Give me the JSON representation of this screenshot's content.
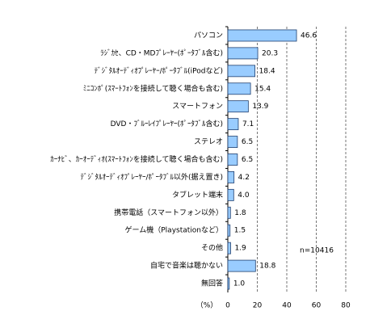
{
  "chart_data": {
    "type": "hbar",
    "categories": [
      "パソコン",
      "ﾗｼﾞｶｾ、CD・MDﾌﾟﾚｰﾔｰ(ﾎﾟｰﾀﾌﾞﾙ含む)",
      "ﾃﾞｼﾞﾀﾙｵｰﾃﾞｨｵﾌﾟﾚｰﾔｰ/ﾎﾟｰﾀﾌﾞﾙ(iPodなど)",
      "ﾐﾆｺﾝﾎﾟ(ｽﾏｰﾄﾌｫﾝを接続して聴く場合も含む)",
      "スマートフォン",
      "DVD・ﾌﾞﾙｰﾚｲﾌﾟﾚｰﾔｰ(ﾎﾟｰﾀﾌﾞﾙ含む)",
      "ステレオ",
      "ｶｰﾅﾋﾞ、ｶｰｵｰﾃﾞｨｵ(ｽﾏｰﾄﾌｫﾝを接続して聴く場合も含む)",
      "ﾃﾞｼﾞﾀﾙｵｰﾃﾞｨｵﾌﾟﾚｰﾔｰ/ﾎﾟｰﾀﾌﾞﾙ以外(据え置き)",
      "タブレット端末",
      "携帯電話（スマートフォン以外）",
      "ゲーム機（Playstationなど）",
      "その他",
      "自宅で音楽は聴かない",
      "無回答"
    ],
    "values": [
      46.6,
      20.3,
      18.4,
      15.4,
      13.9,
      7.1,
      6.5,
      6.5,
      4.2,
      4.0,
      1.8,
      1.5,
      1.9,
      18.8,
      1.0
    ],
    "value_labels": [
      "46.6",
      "20.3",
      "18.4",
      "15.4",
      "13.9",
      "7.1",
      "6.5",
      "6.5",
      "4.2",
      "4.0",
      "1.8",
      "1.5",
      "1.9",
      "18.8",
      "1.0"
    ],
    "color": "#99ccff",
    "x_label": "（%）",
    "annotation": "n=10416",
    "xlim": [
      0,
      80
    ],
    "xticks": [
      0,
      20,
      40,
      60,
      80
    ],
    "grid": true
  }
}
